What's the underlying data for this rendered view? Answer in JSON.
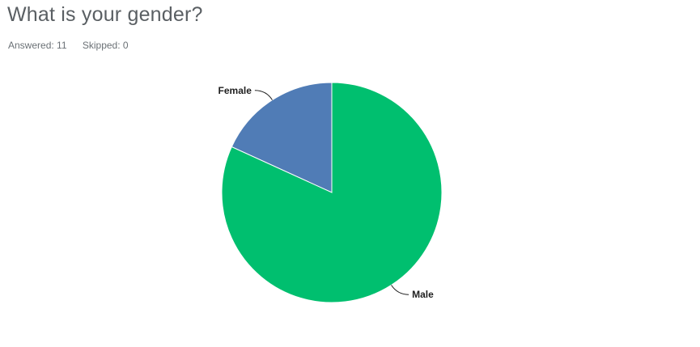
{
  "question": {
    "title": "What is your gender?",
    "answered_label": "Answered: 11",
    "skipped_label": "Skipped: 0"
  },
  "chart_data": {
    "type": "pie",
    "categories": [
      "Female",
      "Male"
    ],
    "values": [
      2,
      9
    ],
    "colors": [
      "#507CB6",
      "#00BF6F"
    ],
    "title": "",
    "legend": "none"
  }
}
